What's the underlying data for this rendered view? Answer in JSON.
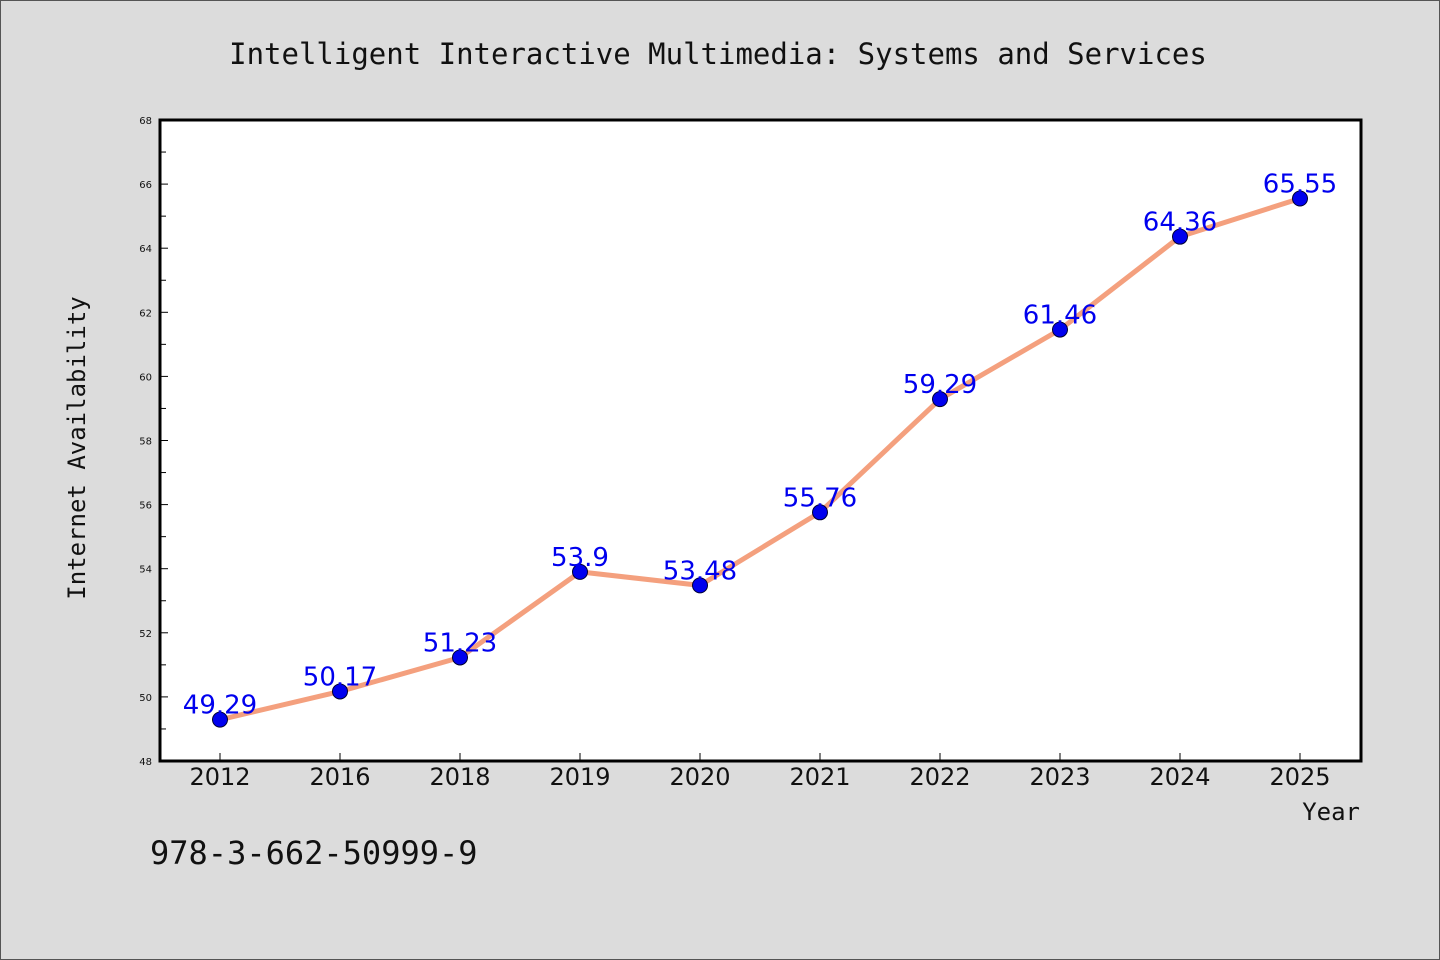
{
  "chart_data": {
    "type": "line",
    "title": "Intelligent Interactive Multimedia: Systems and Services",
    "xlabel": "Year",
    "ylabel": "Internet Availability",
    "categories": [
      "2012",
      "2016",
      "2018",
      "2019",
      "2020",
      "2021",
      "2022",
      "2023",
      "2024",
      "2025"
    ],
    "series": [
      {
        "values": [
          49.29,
          50.17,
          51.23,
          53.9,
          53.48,
          55.76,
          59.29,
          61.46,
          64.36,
          65.55
        ],
        "data_labels": [
          "49.29",
          "50.17",
          "51.23",
          "53.9",
          "53.48",
          "55.76",
          "59.29",
          "61.46",
          "64.36",
          "65.55"
        ]
      }
    ],
    "ylim": [
      48,
      68
    ],
    "yticks": [
      "48",
      "50",
      "52",
      "54",
      "56",
      "58",
      "60",
      "62",
      "64",
      "66",
      "68"
    ],
    "grid": false,
    "legend": "none",
    "colors": {
      "line": "#f4a07e",
      "marker": "#0000ee",
      "label": "#0000ee",
      "background": "#dcdcdc",
      "plot_background": "#ffffff"
    }
  },
  "footer": {
    "isbn": "978-3-662-50999-9"
  }
}
